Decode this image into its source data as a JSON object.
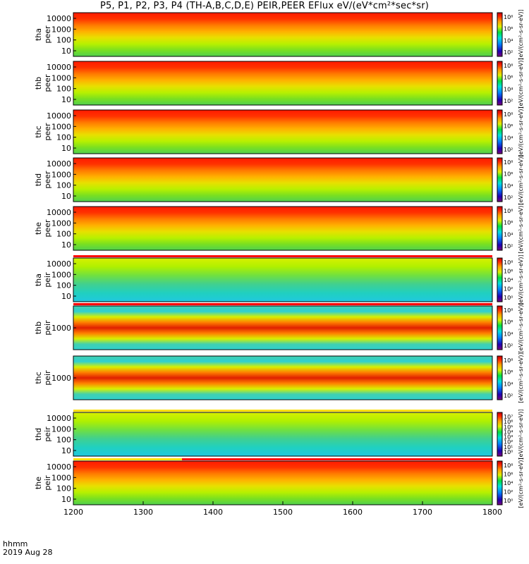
{
  "title": "P5, P1, P2, P3, P4 (TH-A,B,C,D,E) PEIR,PEER EFlux eV/(eV*cm²*sec*sr)",
  "footer": {
    "label": "hhmm",
    "date": "2019 Aug 28"
  },
  "chart_data": {
    "type": "heatmap",
    "x_axis": {
      "range": [
        1200,
        1800
      ],
      "ticks": [
        1200,
        1300,
        1400,
        1500,
        1600,
        1700,
        1800
      ]
    },
    "colorbar_label": "[eV/(cm²-s-sr-eV)]",
    "panels": [
      {
        "probe": "tha",
        "species": "peer",
        "yticks": [
          "10000",
          "1000",
          "100",
          "10"
        ],
        "cbar_ticks": [
          "10⁸",
          "10⁶",
          "10⁴",
          "10²"
        ],
        "base": 1,
        "bar": "none"
      },
      {
        "probe": "thb",
        "species": "peer",
        "yticks": [
          "10000",
          "1000",
          "100",
          "10"
        ],
        "cbar_ticks": [
          "10⁸",
          "10⁶",
          "10⁴",
          "10²"
        ],
        "base": 1,
        "bar": "none"
      },
      {
        "probe": "thc",
        "species": "peer",
        "yticks": [
          "10000",
          "1000",
          "100",
          "10"
        ],
        "cbar_ticks": [
          "10⁸",
          "10⁶",
          "10⁴",
          "10²"
        ],
        "base": 1,
        "bar": "none"
      },
      {
        "probe": "thd",
        "species": "peer",
        "yticks": [
          "10000",
          "1000",
          "100",
          "10"
        ],
        "cbar_ticks": [
          "10⁸",
          "10⁶",
          "10⁴",
          "10²"
        ],
        "base": 1,
        "bar": "none"
      },
      {
        "probe": "the",
        "species": "peer",
        "yticks": [
          "10000",
          "1000",
          "100",
          "10"
        ],
        "cbar_ticks": [
          "10⁸",
          "10⁶",
          "10⁴",
          "10²"
        ],
        "base": 1,
        "bar": "none"
      },
      {
        "probe": "tha",
        "species": "peir",
        "yticks": [
          "10000",
          "1000",
          "100",
          "10"
        ],
        "cbar_ticks": [
          "10⁸",
          "10⁶",
          "10⁴",
          "10²",
          "10⁰"
        ],
        "base": 2,
        "bar": "red"
      },
      {
        "probe": "thb",
        "species": "peir",
        "yticks": [
          "1000"
        ],
        "cbar_ticks": [
          "10⁸",
          "10⁶",
          "10⁴",
          "10²"
        ],
        "base": 3,
        "bar": "red"
      },
      {
        "probe": "thc",
        "species": "peir",
        "yticks": [
          "1000"
        ],
        "cbar_ticks": [
          "10⁸",
          "10⁶",
          "10⁴",
          "10²"
        ],
        "base": 3,
        "bar": "none"
      },
      {
        "probe": "thd",
        "species": "peir",
        "yticks": [
          "10000",
          "1000",
          "100",
          "10"
        ],
        "cbar_ticks": [
          "10⁷",
          "10⁶",
          "10⁵",
          "10⁴",
          "10³",
          "10²",
          "10¹",
          "10⁰"
        ],
        "base": 2,
        "bar": "yellow"
      },
      {
        "probe": "the",
        "species": "peir",
        "yticks": [
          "10000",
          "1000",
          "100",
          "10"
        ],
        "cbar_ticks": [
          "10⁸",
          "10⁶",
          "10⁴",
          "10²",
          "10⁰"
        ],
        "base": 1,
        "bar": "mixed"
      }
    ]
  }
}
